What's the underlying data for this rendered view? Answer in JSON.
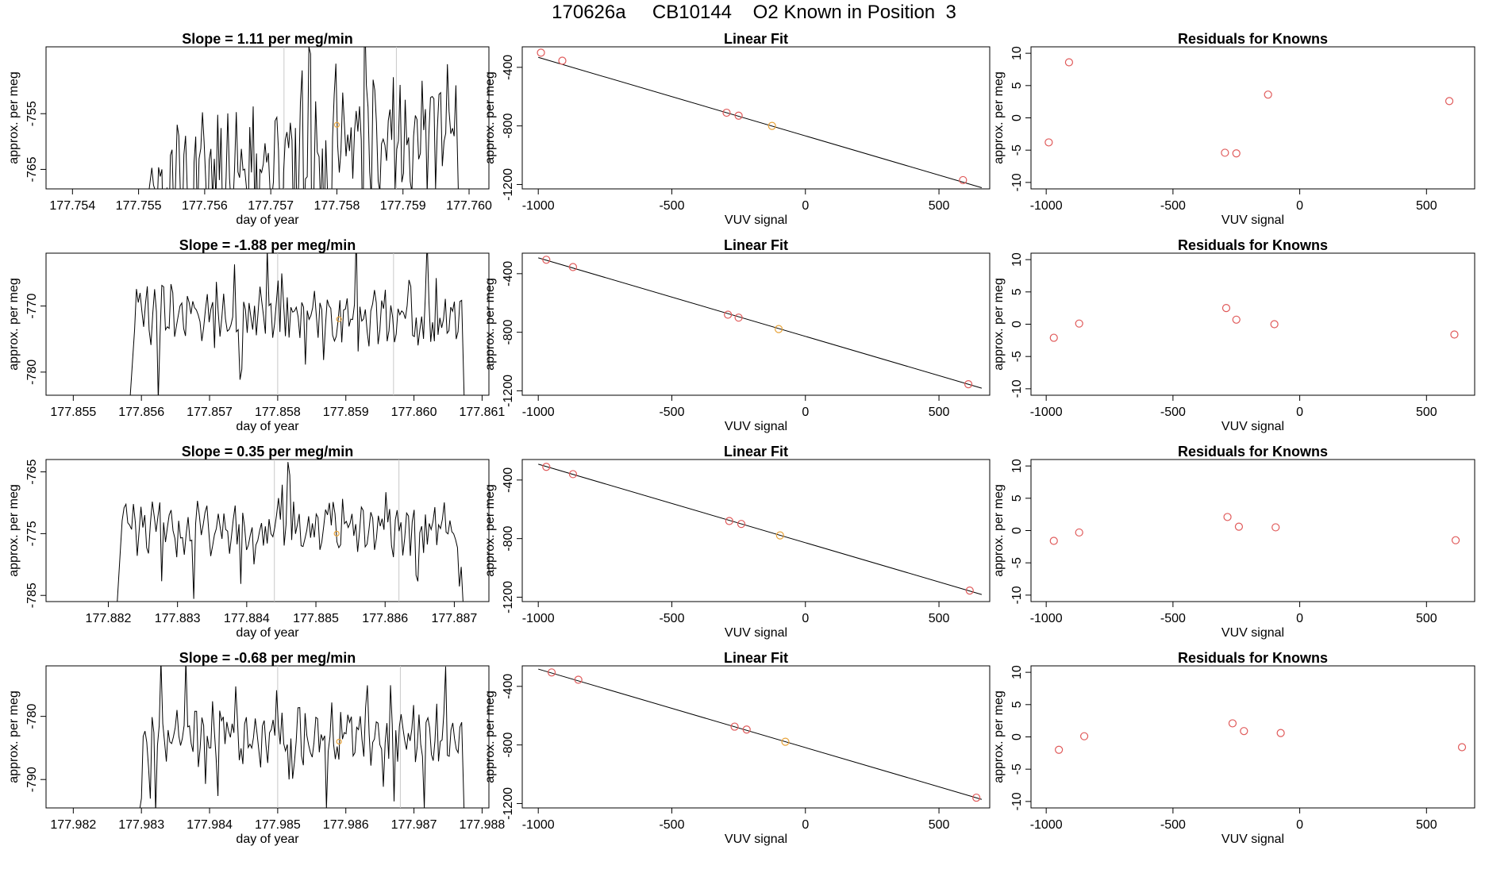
{
  "page": {
    "title": "170626a     CB10144    O2 Known in Position  3"
  },
  "colors": {
    "ink": "#000000",
    "point": "#e05a5a",
    "known": "#e8a33a",
    "marker": "#c8c8c8"
  },
  "chart_data": [
    {
      "type": "line",
      "row": 0,
      "col": 0,
      "title": "Slope =  1.11  per meg/min",
      "xlabel": "day of year",
      "ylabel": "approx. per meg",
      "xlim": [
        177.7536,
        177.7603
      ],
      "ylim": [
        -768.5,
        -743
      ],
      "xticks": [
        177.754,
        177.755,
        177.756,
        177.757,
        177.758,
        177.759,
        177.76
      ],
      "xtick_labels": [
        "177.754",
        "177.755",
        "177.756",
        "177.757",
        "177.758",
        "177.759",
        "177.760"
      ],
      "yticks": [
        -765,
        -755
      ],
      "ytick_labels": [
        "-765",
        "-755"
      ],
      "vlines": [
        177.7572,
        177.7589
      ],
      "highlight": {
        "x": 177.758,
        "y": -757
      },
      "series": {
        "seed": 11,
        "x_start": 177.7552,
        "x_end": 177.7598,
        "mean": -762,
        "amp": 9,
        "ramp": 10
      }
    },
    {
      "type": "scatter",
      "row": 0,
      "col": 1,
      "title": "Linear Fit",
      "xlabel": "VUV signal",
      "ylabel": "approx. per meg",
      "xlim": [
        -1060,
        690
      ],
      "ylim": [
        -1230,
        -260
      ],
      "xticks": [
        -1000,
        -500,
        0,
        500
      ],
      "xtick_labels": [
        "-1000",
        "-500",
        "0",
        "500"
      ],
      "yticks": [
        -1200,
        -800,
        -400
      ],
      "ytick_labels": [
        "-1200",
        "-800",
        "-400"
      ],
      "fit": {
        "slope": -0.536,
        "intercept": -868
      },
      "points": [
        [
          -990,
          -300
        ],
        [
          -910,
          -355
        ],
        [
          -295,
          -710
        ],
        [
          -250,
          -730
        ],
        [
          -125,
          -800
        ],
        [
          590,
          -1170
        ]
      ],
      "known_index": 4
    },
    {
      "type": "scatter",
      "row": 0,
      "col": 2,
      "title": "Residuals for Knowns",
      "xlabel": "VUV signal",
      "ylabel": "approx. per meg",
      "xlim": [
        -1060,
        690
      ],
      "ylim": [
        -11,
        11
      ],
      "xticks": [
        -1000,
        -500,
        0,
        500
      ],
      "xtick_labels": [
        "-1000",
        "-500",
        "0",
        "500"
      ],
      "yticks": [
        -10,
        -5,
        0,
        5,
        10
      ],
      "ytick_labels": [
        "-10",
        "-5",
        "0",
        "5",
        "10"
      ],
      "points": [
        [
          -990,
          -3.8
        ],
        [
          -910,
          8.6
        ],
        [
          -295,
          -5.4
        ],
        [
          -250,
          -5.5
        ],
        [
          -125,
          3.6
        ],
        [
          590,
          2.6
        ]
      ]
    },
    {
      "type": "line",
      "row": 1,
      "col": 0,
      "title": "Slope =  -1.88  per meg/min",
      "xlabel": "day of year",
      "ylabel": "approx. per meg",
      "xlim": [
        177.8546,
        177.8611
      ],
      "ylim": [
        -783.5,
        -762
      ],
      "xticks": [
        177.855,
        177.856,
        177.857,
        177.858,
        177.859,
        177.86,
        177.861
      ],
      "xtick_labels": [
        "177.855",
        "177.856",
        "177.857",
        "177.858",
        "177.859",
        "177.860",
        "177.861"
      ],
      "yticks": [
        -780,
        -770
      ],
      "ytick_labels": [
        "-780",
        "-770"
      ],
      "vlines": [
        177.858,
        177.8597
      ],
      "highlight": {
        "x": 177.8589,
        "y": -772
      },
      "series": {
        "seed": 23,
        "x_start": 177.8559,
        "x_end": 177.8607,
        "mean": -771,
        "amp": 4,
        "ramp": 0
      }
    },
    {
      "type": "scatter",
      "row": 1,
      "col": 1,
      "title": "Linear Fit",
      "xlabel": "VUV signal",
      "ylabel": "approx. per meg",
      "xlim": [
        -1060,
        690
      ],
      "ylim": [
        -1230,
        -260
      ],
      "xticks": [
        -1000,
        -500,
        0,
        500
      ],
      "xtick_labels": [
        "-1000",
        "-500",
        "0",
        "500"
      ],
      "yticks": [
        -1200,
        -800,
        -400
      ],
      "ytick_labels": [
        "-1200",
        "-800",
        "-400"
      ],
      "fit": {
        "slope": -0.536,
        "intercept": -828
      },
      "points": [
        [
          -970,
          -305
        ],
        [
          -870,
          -355
        ],
        [
          -290,
          -680
        ],
        [
          -250,
          -700
        ],
        [
          -100,
          -778
        ],
        [
          610,
          -1155
        ]
      ],
      "known_index": 4
    },
    {
      "type": "scatter",
      "row": 1,
      "col": 2,
      "title": "Residuals for Knowns",
      "xlabel": "VUV signal",
      "ylabel": "approx. per meg",
      "xlim": [
        -1060,
        690
      ],
      "ylim": [
        -11,
        11
      ],
      "xticks": [
        -1000,
        -500,
        0,
        500
      ],
      "xtick_labels": [
        "-1000",
        "-500",
        "0",
        "500"
      ],
      "yticks": [
        -10,
        -5,
        0,
        5,
        10
      ],
      "ytick_labels": [
        "-10",
        "-5",
        "0",
        "5",
        "10"
      ],
      "points": [
        [
          -970,
          -2.1
        ],
        [
          -870,
          0.1
        ],
        [
          -290,
          2.5
        ],
        [
          -250,
          0.7
        ],
        [
          -100,
          0.0
        ],
        [
          610,
          -1.6
        ]
      ]
    },
    {
      "type": "line",
      "row": 2,
      "col": 0,
      "title": "Slope =  0.35  per meg/min",
      "xlabel": "day of year",
      "ylabel": "approx. per meg",
      "xlim": [
        177.8811,
        177.8875
      ],
      "ylim": [
        -786,
        -763
      ],
      "xticks": [
        177.882,
        177.883,
        177.884,
        177.885,
        177.886,
        177.887
      ],
      "xtick_labels": [
        "177.882",
        "177.883",
        "177.884",
        "177.885",
        "177.886",
        "177.887"
      ],
      "yticks": [
        -785,
        -775,
        -765
      ],
      "ytick_labels": [
        "-785",
        "-775",
        "-765"
      ],
      "vlines": [
        177.8844,
        177.8862
      ],
      "highlight": {
        "x": 177.8853,
        "y": -775
      },
      "series": {
        "seed": 37,
        "x_start": 177.8822,
        "x_end": 177.8871,
        "mean": -774,
        "amp": 3.5,
        "ramp": 0
      }
    },
    {
      "type": "scatter",
      "row": 2,
      "col": 1,
      "title": "Linear Fit",
      "xlabel": "VUV signal",
      "ylabel": "approx. per meg",
      "xlim": [
        -1060,
        690
      ],
      "ylim": [
        -1230,
        -260
      ],
      "xticks": [
        -1000,
        -500,
        0,
        500
      ],
      "xtick_labels": [
        "-1000",
        "-500",
        "0",
        "500"
      ],
      "yticks": [
        -1200,
        -800,
        -400
      ],
      "ytick_labels": [
        "-1200",
        "-800",
        "-400"
      ],
      "fit": {
        "slope": -0.536,
        "intercept": -828
      },
      "points": [
        [
          -970,
          -310
        ],
        [
          -870,
          -360
        ],
        [
          -285,
          -680
        ],
        [
          -240,
          -700
        ],
        [
          -95,
          -778
        ],
        [
          615,
          -1155
        ]
      ],
      "known_index": 4
    },
    {
      "type": "scatter",
      "row": 2,
      "col": 2,
      "title": "Residuals for Knowns",
      "xlabel": "VUV signal",
      "ylabel": "approx. per meg",
      "xlim": [
        -1060,
        690
      ],
      "ylim": [
        -11,
        11
      ],
      "xticks": [
        -1000,
        -500,
        0,
        500
      ],
      "xtick_labels": [
        "-1000",
        "-500",
        "0",
        "500"
      ],
      "yticks": [
        -10,
        -5,
        0,
        5,
        10
      ],
      "ytick_labels": [
        "-10",
        "-5",
        "0",
        "5",
        "10"
      ],
      "points": [
        [
          -970,
          -1.6
        ],
        [
          -870,
          -0.3
        ],
        [
          -285,
          2.1
        ],
        [
          -240,
          0.6
        ],
        [
          -95,
          0.5
        ],
        [
          615,
          -1.5
        ]
      ]
    },
    {
      "type": "line",
      "row": 3,
      "col": 0,
      "title": "Slope =  -0.68  per meg/min",
      "xlabel": "day of year",
      "ylabel": "approx. per meg",
      "xlim": [
        177.9816,
        177.9881
      ],
      "ylim": [
        -794.5,
        -772
      ],
      "xticks": [
        177.982,
        177.983,
        177.984,
        177.985,
        177.986,
        177.987,
        177.988
      ],
      "xtick_labels": [
        "177.982",
        "177.983",
        "177.984",
        "177.985",
        "177.986",
        "177.987",
        "177.988"
      ],
      "yticks": [
        -790,
        -780
      ],
      "ytick_labels": [
        "-790",
        "-780"
      ],
      "vlines": [
        177.985,
        177.9868
      ],
      "highlight": {
        "x": 177.9859,
        "y": -784
      },
      "series": {
        "seed": 53,
        "x_start": 177.983,
        "x_end": 177.9877,
        "mean": -783,
        "amp": 4,
        "ramp": 0
      }
    },
    {
      "type": "scatter",
      "row": 3,
      "col": 1,
      "title": "Linear Fit",
      "xlabel": "VUV signal",
      "ylabel": "approx. per meg",
      "xlim": [
        -1060,
        690
      ],
      "ylim": [
        -1230,
        -260
      ],
      "xticks": [
        -1000,
        -500,
        0,
        500
      ],
      "xtick_labels": [
        "-1000",
        "-500",
        "0",
        "500"
      ],
      "yticks": [
        -1200,
        -800,
        -400
      ],
      "ytick_labels": [
        "-1200",
        "-800",
        "-400"
      ],
      "fit": {
        "slope": -0.536,
        "intercept": -818
      },
      "points": [
        [
          -950,
          -305
        ],
        [
          -850,
          -355
        ],
        [
          -265,
          -675
        ],
        [
          -220,
          -695
        ],
        [
          -75,
          -778
        ],
        [
          640,
          -1160
        ]
      ],
      "known_index": 4
    },
    {
      "type": "scatter",
      "row": 3,
      "col": 2,
      "title": "Residuals for Knowns",
      "xlabel": "VUV signal",
      "ylabel": "approx. per meg",
      "xlim": [
        -1060,
        690
      ],
      "ylim": [
        -11,
        11
      ],
      "xticks": [
        -1000,
        -500,
        0,
        500
      ],
      "xtick_labels": [
        "-1000",
        "-500",
        "0",
        "500"
      ],
      "yticks": [
        -10,
        -5,
        0,
        5,
        10
      ],
      "ytick_labels": [
        "-10",
        "-5",
        "0",
        "5",
        "10"
      ],
      "points": [
        [
          -950,
          -2.0
        ],
        [
          -850,
          0.1
        ],
        [
          -265,
          2.1
        ],
        [
          -220,
          0.9
        ],
        [
          -75,
          0.6
        ],
        [
          640,
          -1.6
        ]
      ]
    }
  ]
}
